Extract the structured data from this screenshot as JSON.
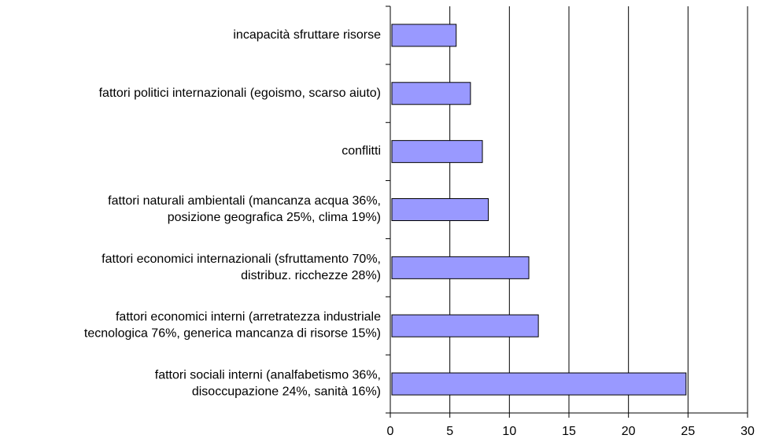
{
  "chart_data": {
    "type": "bar",
    "orientation": "horizontal",
    "categories": [
      [
        "incapacità sfruttare risorse"
      ],
      [
        "fattori politici internazionali (egoismo, scarso aiuto)"
      ],
      [
        "conflitti"
      ],
      [
        "fattori naturali ambientali (mancanza acqua 36%,",
        "posizione geografica 25%, clima 19%)"
      ],
      [
        "fattori economici internazionali (sfruttamento 70%,",
        "distribuz. ricchezze 28%)"
      ],
      [
        "fattori economici interni (arretratezza industriale",
        "tecnologica 76%, generica mancanza di risorse 15%)"
      ],
      [
        "fattori sociali interni (analfabetismo 36%,",
        "disoccupazione 24%, sanità 16%)"
      ]
    ],
    "values": [
      5.4,
      6.6,
      7.6,
      8.1,
      11.5,
      12.3,
      24.7
    ],
    "color": "#9999ff",
    "xlim": [
      0,
      30
    ],
    "xticks": [
      0,
      5,
      10,
      15,
      20,
      25,
      30
    ],
    "grid": true
  }
}
